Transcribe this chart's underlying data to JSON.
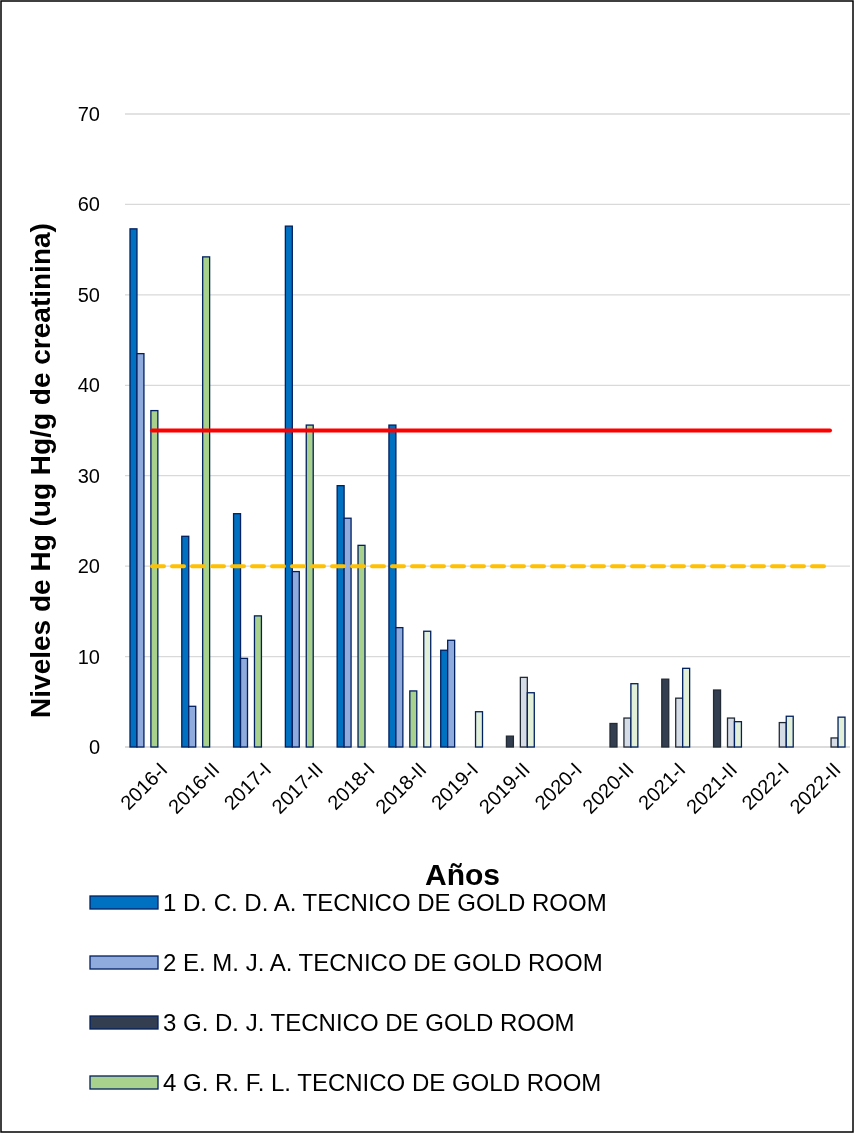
{
  "chart_data": {
    "type": "bar",
    "xlabel": "Años",
    "ylabel": "Niveles de Hg (ug Hg/g de creatinina)",
    "categories": [
      "2016-I",
      "2016-II",
      "2017-I",
      "2017-II",
      "2018-I",
      "2018-II",
      "2019-I",
      "2019-II",
      "2020-I",
      "2020-II",
      "2021-I",
      "2021-II",
      "2022-I",
      "2022-II"
    ],
    "series": [
      {
        "name": "1 D. C. D. A. TECNICO DE GOLD ROOM",
        "color": "#0070c0",
        "values": [
          57.3,
          23.3,
          25.8,
          57.6,
          28.9,
          35.6,
          10.7,
          null,
          null,
          null,
          null,
          null,
          null,
          null
        ]
      },
      {
        "name": "2 E. M. J. A. TECNICO DE GOLD ROOM",
        "color": "#8faadc",
        "values": [
          43.5,
          4.5,
          9.8,
          19.4,
          25.3,
          13.2,
          11.8,
          null,
          null,
          null,
          null,
          null,
          null,
          null
        ]
      },
      {
        "name": "3 G. D. J. TECNICO DE GOLD ROOM",
        "color": "#333f50",
        "values": [
          null,
          null,
          null,
          null,
          null,
          null,
          null,
          1.2,
          null,
          2.6,
          7.5,
          6.3,
          null,
          null
        ]
      },
      {
        "name": "4 G. R. F. L. TECNICO DE GOLD ROOM",
        "color": "#a9d18e",
        "values": [
          37.2,
          54.2,
          14.5,
          35.6,
          22.3,
          6.2,
          null,
          null,
          null,
          null,
          null,
          null,
          null,
          null
        ]
      },
      {
        "color": "#d6dce5",
        "values": [
          null,
          null,
          null,
          null,
          null,
          null,
          null,
          7.7,
          null,
          3.2,
          5.4,
          3.2,
          2.7,
          1.0
        ]
      },
      {
        "color": "#e2f0d9",
        "values": [
          null,
          null,
          null,
          null,
          null,
          12.8,
          3.9,
          6.0,
          null,
          7.0,
          8.7,
          2.8,
          3.4,
          3.3
        ]
      }
    ],
    "ylim": [
      0,
      70
    ],
    "yticks": [
      0,
      10,
      20,
      30,
      40,
      50,
      60,
      70
    ],
    "grid": "y",
    "legend": "bottom",
    "ref_lines": [
      {
        "axis": "y",
        "value": 35,
        "color": "#ff0000",
        "line_style": "solid"
      },
      {
        "axis": "y",
        "value": 20,
        "color": "#ffc000",
        "line_style": "dashed"
      }
    ]
  }
}
